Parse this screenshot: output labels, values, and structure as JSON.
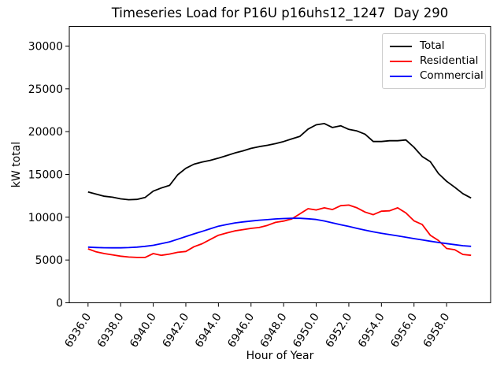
{
  "title": "Timeseries Load for P16U p16uhs12_1247  Day 290",
  "axes": {
    "xlabel": "Hour of Year",
    "ylabel": "kW total",
    "x_tick_labels": [
      "6936.0",
      "6938.0",
      "6940.0",
      "6942.0",
      "6944.0",
      "6946.0",
      "6948.0",
      "6950.0",
      "6952.0",
      "6954.0",
      "6956.0",
      "6958.0"
    ],
    "y_tick_labels": [
      "0",
      "5000",
      "10000",
      "15000",
      "20000",
      "25000",
      "30000"
    ]
  },
  "legend": {
    "position": "upper right",
    "items": [
      {
        "label": "Total",
        "color": "#000000"
      },
      {
        "label": "Residential",
        "color": "#ff0000"
      },
      {
        "label": "Commercial",
        "color": "#0000ff"
      }
    ]
  },
  "colors": {
    "background": "#ffffff",
    "axes": "#000000",
    "total": "#000000",
    "residential": "#ff0000",
    "commercial": "#0000ff",
    "legend_border": "#cccccc"
  },
  "chart_data": {
    "type": "line",
    "title": "Timeseries Load for P16U p16uhs12_1247  Day 290",
    "xlabel": "Hour of Year",
    "ylabel": "kW total",
    "xlim": [
      6934.85,
      6960.7
    ],
    "ylim": [
      0,
      32300
    ],
    "x_tick_values": [
      6936,
      6938,
      6940,
      6942,
      6944,
      6946,
      6948,
      6950,
      6952,
      6954,
      6956,
      6958
    ],
    "y_tick_values": [
      0,
      5000,
      10000,
      15000,
      20000,
      25000,
      30000
    ],
    "grid": false,
    "legend_position": "upper right",
    "x": [
      6936.0,
      6936.5,
      6937.0,
      6937.5,
      6938.0,
      6938.5,
      6939.0,
      6939.5,
      6940.0,
      6940.5,
      6941.0,
      6941.5,
      6942.0,
      6942.5,
      6943.0,
      6943.5,
      6944.0,
      6944.5,
      6945.0,
      6945.5,
      6946.0,
      6946.5,
      6947.0,
      6947.5,
      6948.0,
      6948.5,
      6949.0,
      6949.5,
      6950.0,
      6950.5,
      6951.0,
      6951.5,
      6952.0,
      6952.5,
      6953.0,
      6953.5,
      6954.0,
      6954.5,
      6955.0,
      6955.5,
      6956.0,
      6956.5,
      6957.0,
      6957.5,
      6958.0,
      6958.5,
      6959.0,
      6959.5
    ],
    "series": [
      {
        "name": "Total",
        "color": "#000000",
        "values": [
          12960,
          12700,
          12450,
          12340,
          12150,
          12050,
          12080,
          12300,
          13050,
          13420,
          13720,
          14950,
          15720,
          16200,
          16450,
          16650,
          16900,
          17200,
          17500,
          17750,
          18050,
          18250,
          18400,
          18600,
          18850,
          19150,
          19450,
          20300,
          20800,
          20940,
          20480,
          20690,
          20260,
          20080,
          19700,
          18850,
          18850,
          18940,
          18940,
          19030,
          18170,
          17100,
          16500,
          15100,
          14200,
          13500,
          12750,
          12250
        ]
      },
      {
        "name": "Residential",
        "color": "#ff0000",
        "values": [
          6300,
          5950,
          5750,
          5600,
          5450,
          5350,
          5300,
          5300,
          5750,
          5550,
          5700,
          5900,
          6000,
          6550,
          6900,
          7400,
          7900,
          8150,
          8400,
          8550,
          8700,
          8800,
          9050,
          9400,
          9550,
          9800,
          10400,
          11000,
          10850,
          11100,
          10900,
          11350,
          11420,
          11100,
          10600,
          10300,
          10700,
          10750,
          11100,
          10500,
          9580,
          9150,
          7900,
          7280,
          6350,
          6200,
          5650,
          5550
        ]
      },
      {
        "name": "Commercial",
        "color": "#0000ff",
        "values": [
          6510,
          6460,
          6430,
          6420,
          6420,
          6450,
          6510,
          6600,
          6720,
          6910,
          7120,
          7430,
          7740,
          8050,
          8350,
          8650,
          8950,
          9150,
          9330,
          9450,
          9550,
          9650,
          9720,
          9800,
          9850,
          9870,
          9870,
          9820,
          9740,
          9560,
          9340,
          9120,
          8930,
          8700,
          8480,
          8290,
          8130,
          7970,
          7820,
          7660,
          7500,
          7350,
          7200,
          7050,
          6920,
          6790,
          6670,
          6600
        ]
      }
    ]
  }
}
